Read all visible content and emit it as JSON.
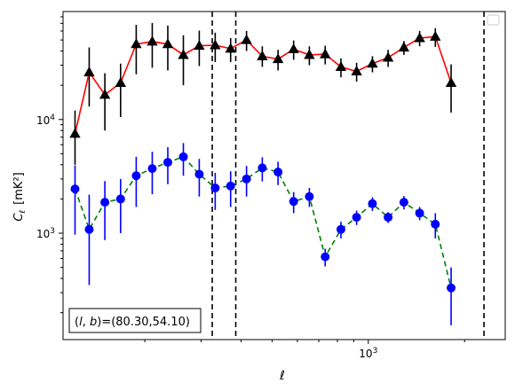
{
  "chart_data": {
    "type": "line",
    "xscale": "log",
    "yscale": "log",
    "xlim": [
      111,
      2680
    ],
    "ylim": [
      116,
      89000
    ],
    "xlabel": "ℓ",
    "ylabel_main": "C",
    "ylabel_sub": "ℓ",
    "ylabel_unit": "[mK²]",
    "x_ticks": [
      {
        "value": 1000,
        "base": "10",
        "exp": "3"
      }
    ],
    "y_ticks": [
      {
        "value": 1000,
        "base": "10",
        "exp": "3"
      },
      {
        "value": 10000,
        "base": "10",
        "exp": "4"
      }
    ],
    "annotation": "(l, b)=(80.30,54.10)",
    "annotation_parts": {
      "l": "l",
      "b": "b",
      "value": "=(80.30,54.10)"
    },
    "legend": "empty box, top-right",
    "vlines": [
      325,
      385,
      2300
    ],
    "x": [
      121,
      139,
      160,
      184,
      212,
      244,
      281,
      324,
      373,
      430,
      495,
      570,
      657,
      757,
      872,
      1004,
      1157,
      1333,
      1535,
      1768,
      2037,
      2346,
      2510
    ],
    "series": [
      {
        "color": "#ff0000",
        "marker": "triangle",
        "marker_color": "#000000",
        "line_style": "solid",
        "y": [
          7500,
          26000,
          16500,
          21000,
          46000,
          48500,
          46000,
          37000,
          44500,
          45000,
          42000,
          50000,
          36000,
          34000,
          41500,
          37000,
          37500,
          29000,
          26500,
          31000,
          35000,
          43000,
          52000,
          53500,
          21000
        ],
        "x": [
          121,
          134,
          150,
          168,
          188,
          211,
          236,
          264,
          296,
          332,
          371,
          416,
          466,
          522,
          584,
          654,
          733,
          821,
          919,
          1030,
          1153,
          1292,
          1447,
          1620,
          1815
        ],
        "y_err_low": [
          3500,
          13000,
          8500,
          10500,
          21000,
          20000,
          19000,
          17000,
          15000,
          13000,
          10000,
          10000,
          7000,
          7000,
          8000,
          7000,
          7000,
          5500,
          5000,
          5000,
          6000,
          6000,
          8000,
          10000,
          9500
        ],
        "y_err_high": [
          4500,
          17000,
          9000,
          10000,
          22000,
          22000,
          21000,
          18000,
          16000,
          13000,
          10000,
          10000,
          8000,
          7000,
          8000,
          7000,
          7000,
          5500,
          5000,
          5000,
          6000,
          6000,
          8000,
          10000,
          9500
        ]
      },
      {
        "color": "#008000",
        "marker": "circle",
        "marker_color": "#0000ff",
        "line_style": "dashed",
        "x": [
          121,
          134,
          150,
          168,
          188,
          211,
          236,
          264,
          296,
          332,
          371,
          416,
          466,
          522,
          584,
          654,
          733,
          821,
          919,
          1030,
          1153,
          1292,
          1447,
          1620,
          1815
        ],
        "y": [
          2450,
          1080,
          1870,
          2000,
          3200,
          3700,
          4200,
          4700,
          3300,
          2500,
          2600,
          3000,
          3750,
          3450,
          1900,
          2100,
          620,
          1080,
          1380,
          1820,
          1380,
          1870,
          1500,
          1200,
          330
        ],
        "y_err_low": [
          1480,
          730,
          1000,
          1000,
          1500,
          1500,
          1500,
          1500,
          1200,
          900,
          900,
          900,
          900,
          800,
          400,
          400,
          110,
          180,
          200,
          250,
          150,
          250,
          200,
          300,
          175
        ],
        "y_err_high": [
          1500,
          1100,
          1000,
          1000,
          1500,
          1500,
          1500,
          1500,
          1200,
          900,
          900,
          900,
          900,
          800,
          400,
          400,
          110,
          180,
          200,
          250,
          150,
          250,
          200,
          300,
          170
        ]
      }
    ]
  }
}
